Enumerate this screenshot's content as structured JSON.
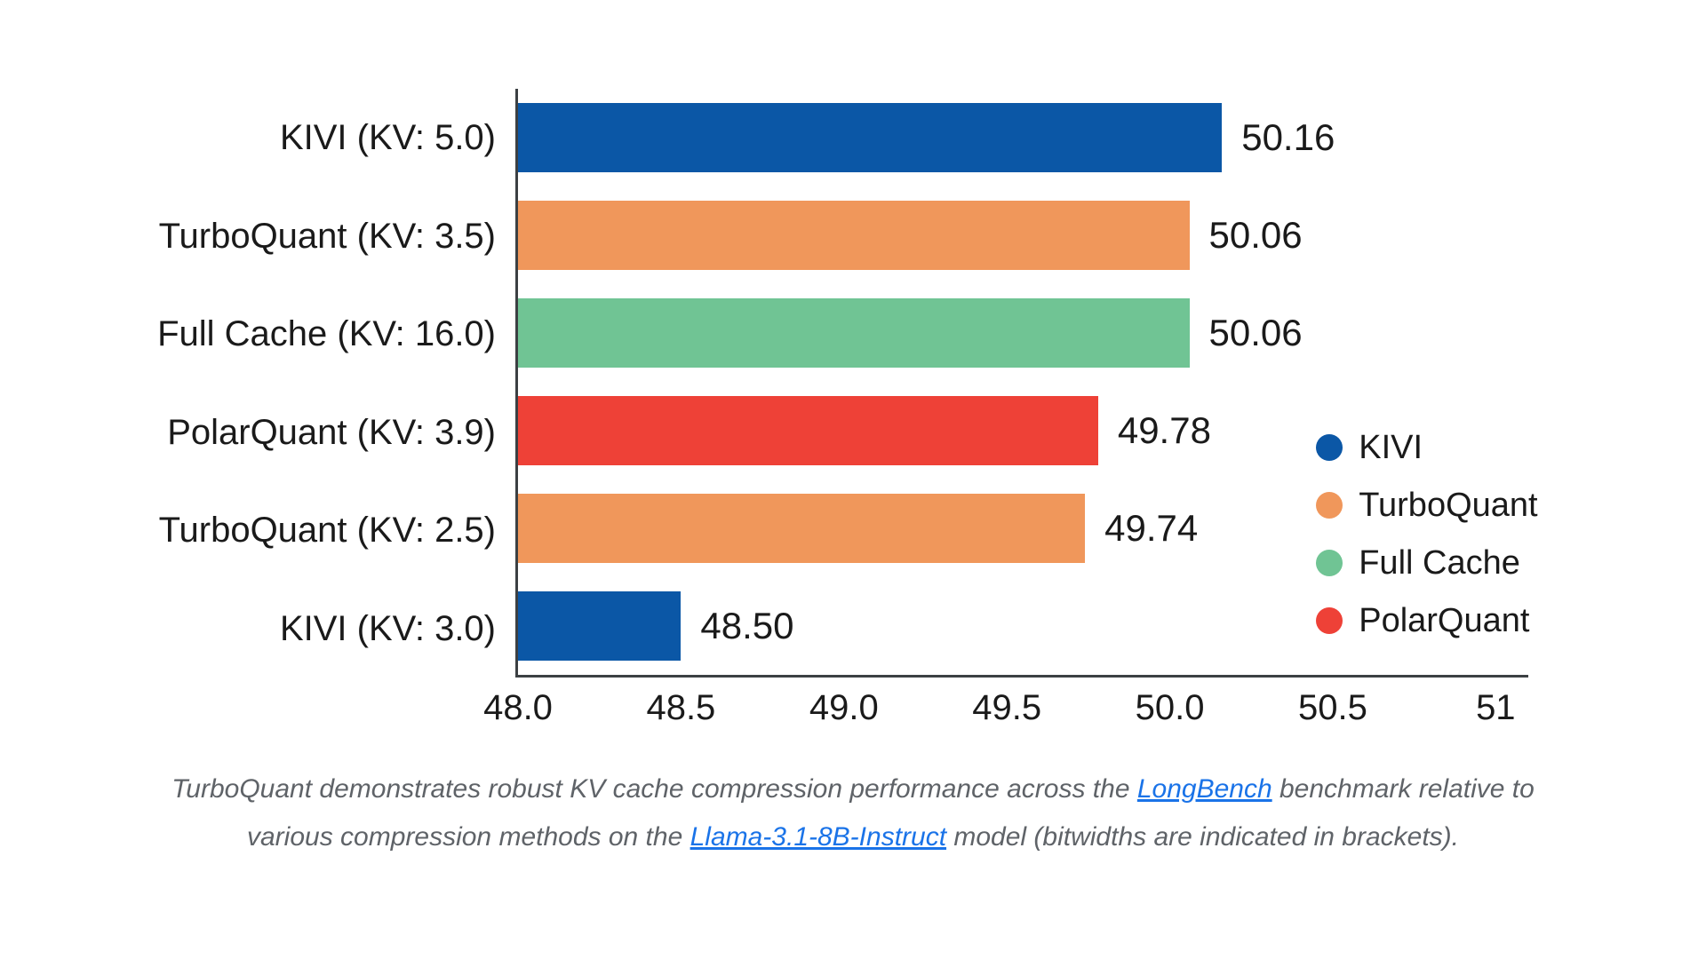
{
  "chart_data": {
    "type": "bar",
    "orientation": "horizontal",
    "categories": [
      "KIVI (KV: 5.0)",
      "TurboQuant (KV: 3.5)",
      "Full Cache (KV: 16.0)",
      "PolarQuant (KV: 3.9)",
      "TurboQuant (KV: 2.5)",
      "KIVI (KV: 3.0)"
    ],
    "values": [
      50.16,
      50.06,
      50.06,
      49.78,
      49.74,
      48.5
    ],
    "value_labels": [
      "50.16",
      "50.06",
      "50.06",
      "49.78",
      "49.74",
      "48.50"
    ],
    "bar_methods": [
      "KIVI",
      "TurboQuant",
      "Full Cache",
      "PolarQuant",
      "TurboQuant",
      "KIVI"
    ],
    "xlim": [
      48.0,
      51.1
    ],
    "x_ticks": [
      "48.0",
      "48.5",
      "49.0",
      "49.5",
      "50.0",
      "50.5",
      "51"
    ],
    "x_tick_values": [
      48.0,
      48.5,
      49.0,
      49.5,
      50.0,
      50.5,
      51.0
    ],
    "grid": false,
    "colors": {
      "KIVI": "#0b57a6",
      "TurboQuant": "#f0975b",
      "Full Cache": "#70c494",
      "PolarQuant": "#ee4137"
    },
    "legend": {
      "position": "inside-right",
      "entries": [
        {
          "label": "KIVI",
          "color": "#0b57a6"
        },
        {
          "label": "TurboQuant",
          "color": "#f0975b"
        },
        {
          "label": "Full Cache",
          "color": "#70c494"
        },
        {
          "label": "PolarQuant",
          "color": "#ee4137"
        }
      ]
    }
  },
  "caption": {
    "text_color": "#5f6368",
    "link_color": "#1a73e8",
    "segments": [
      {
        "type": "text",
        "text": "TurboQuant demonstrates robust KV cache compression performance across the "
      },
      {
        "type": "link",
        "text": "LongBench"
      },
      {
        "type": "text",
        "text": " benchmark relative to various compression methods on the "
      },
      {
        "type": "link",
        "text": "Llama-3.1-8B-Instruct"
      },
      {
        "type": "text",
        "text": " model (bitwidths are indicated in brackets)."
      }
    ]
  },
  "axis_color": "#3c4043"
}
